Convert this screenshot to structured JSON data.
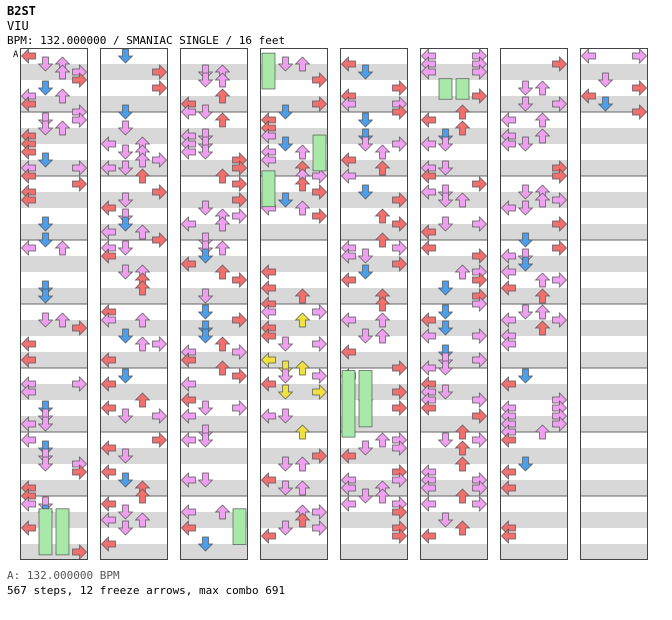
{
  "song": {
    "title": "B2ST",
    "artist": "VIU",
    "meta": "BPM: 132.000000 / SMANIAC SINGLE / 16 feet"
  },
  "chart_marker": "A",
  "footer": {
    "bpm_text": "A: 132.000000 BPM",
    "stats_text": "567 steps, 12 freeze arrows, max combo 691"
  },
  "columns": 8,
  "measures_per_column": 8,
  "colors": {
    "left": "#f07070",
    "down": "#4d9de8",
    "up": "#f07070",
    "right": "#f07070",
    "jump": "#f0a0f0",
    "shock": "#f0e040",
    "freeze": "#a8e8a8",
    "stripe": "#d8d8d8"
  },
  "chart_data": {
    "type": "table",
    "chart_type": "dance step chart (arrow notes grid)",
    "steps": 567,
    "freeze_arrows": 12,
    "max_combo": 691,
    "bpm": 132.0,
    "difficulty": "SMANIAC SINGLE",
    "feet": 16
  }
}
